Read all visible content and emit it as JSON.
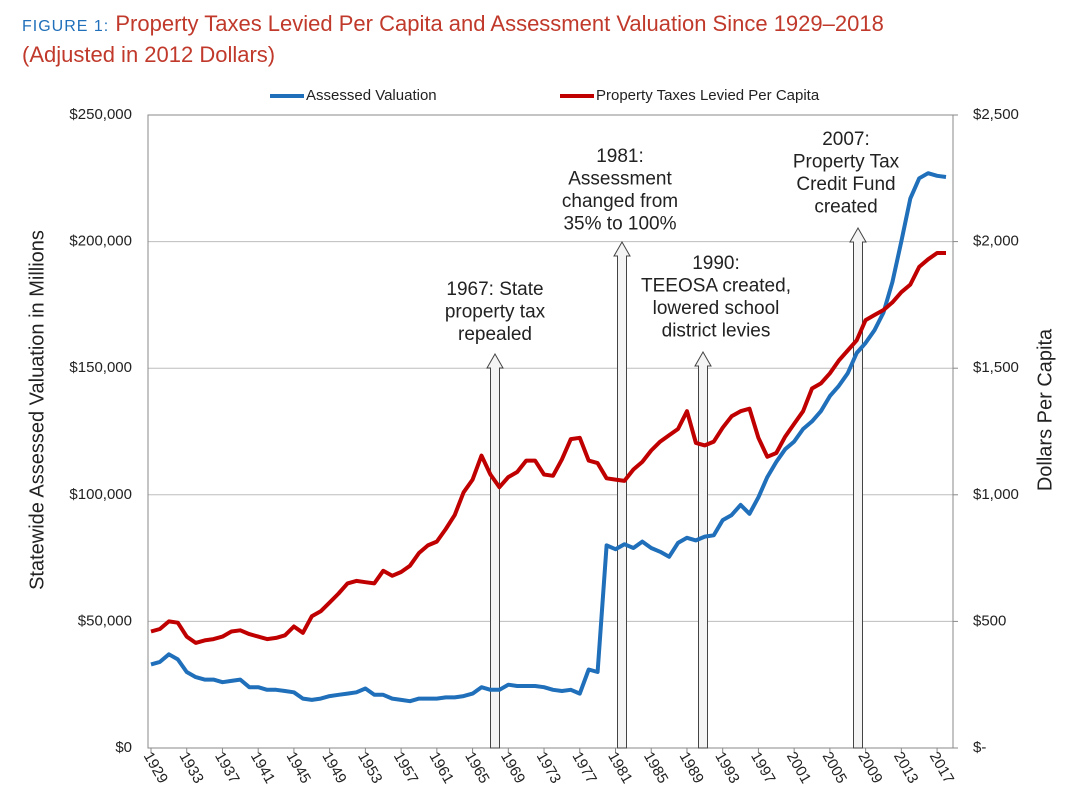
{
  "chart_data": {
    "type": "line",
    "title_prefix": "FIGURE 1:",
    "title": "Property Taxes Levied Per Capita and Assessment Valuation Since 1929–2018 (Adjusted in 2012 Dollars)",
    "ylabel": "Statewide Assessed Valuation in Millions",
    "y2label": "Dollars Per Capita",
    "x": [
      1929,
      1930,
      1931,
      1932,
      1933,
      1934,
      1935,
      1936,
      1937,
      1938,
      1939,
      1940,
      1941,
      1942,
      1943,
      1944,
      1945,
      1946,
      1947,
      1948,
      1949,
      1950,
      1951,
      1952,
      1953,
      1954,
      1955,
      1956,
      1957,
      1958,
      1959,
      1960,
      1961,
      1962,
      1963,
      1964,
      1965,
      1966,
      1967,
      1968,
      1969,
      1970,
      1971,
      1972,
      1973,
      1974,
      1975,
      1976,
      1977,
      1978,
      1979,
      1980,
      1981,
      1982,
      1983,
      1984,
      1985,
      1986,
      1987,
      1988,
      1989,
      1990,
      1991,
      1992,
      1993,
      1994,
      1995,
      1996,
      1997,
      1998,
      1999,
      2000,
      2001,
      2002,
      2003,
      2004,
      2005,
      2006,
      2007,
      2008,
      2009,
      2010,
      2011,
      2012,
      2013,
      2014,
      2015,
      2016,
      2017,
      2018
    ],
    "xlim": [
      1929,
      2018
    ],
    "xticks": [
      1929,
      1933,
      1937,
      1941,
      1945,
      1949,
      1953,
      1957,
      1961,
      1965,
      1969,
      1973,
      1977,
      1981,
      1985,
      1989,
      1993,
      1997,
      2001,
      2005,
      2009,
      2013,
      2017
    ],
    "ylim": [
      0,
      250000
    ],
    "yticks": [
      {
        "value": 0,
        "label": "$0"
      },
      {
        "value": 50000,
        "label": "$50,000"
      },
      {
        "value": 100000,
        "label": "$100,000"
      },
      {
        "value": 150000,
        "label": "$150,000"
      },
      {
        "value": 200000,
        "label": "$200,000"
      },
      {
        "value": 250000,
        "label": "$250,000"
      }
    ],
    "y2lim": [
      0,
      2500
    ],
    "y2ticks": [
      {
        "value": 0,
        "label": "$-"
      },
      {
        "value": 500,
        "label": "$500"
      },
      {
        "value": 1000,
        "label": "$1,000"
      },
      {
        "value": 1500,
        "label": "$1,500"
      },
      {
        "value": 2000,
        "label": "$2,000"
      },
      {
        "value": 2500,
        "label": "$2,500"
      }
    ],
    "grid": true,
    "legend": "top",
    "series": [
      {
        "name": "Assessed Valuation",
        "color": "#1f6fba",
        "axis": "y",
        "values": [
          33000,
          34000,
          37000,
          35000,
          30000,
          28000,
          27000,
          27000,
          26000,
          26500,
          27000,
          24000,
          24000,
          23000,
          23000,
          22500,
          22000,
          19500,
          19000,
          19500,
          20500,
          21000,
          21500,
          22000,
          23500,
          21000,
          21000,
          19500,
          19000,
          18500,
          19500,
          19500,
          19500,
          20000,
          20000,
          20500,
          21500,
          24000,
          23000,
          23000,
          25000,
          24500,
          24500,
          24500,
          24000,
          23000,
          22500,
          23000,
          21500,
          31000,
          30000,
          80000,
          78500,
          80500,
          79000,
          81500,
          79000,
          77500,
          75500,
          81000,
          83000,
          82000,
          83500,
          84000,
          90000,
          92000,
          96000,
          92500,
          99000,
          107000,
          113000,
          118000,
          121000,
          126000,
          129000,
          133000,
          139000,
          143000,
          148000,
          156000,
          160000,
          165000,
          172000,
          184000,
          200000,
          217000,
          225000,
          227000,
          226000,
          225500
        ]
      },
      {
        "name": "Property Taxes Levied Per Capita",
        "color": "#c00000",
        "axis": "y2",
        "values": [
          460,
          470,
          500,
          495,
          440,
          415,
          425,
          430,
          440,
          460,
          465,
          450,
          440,
          430,
          435,
          445,
          480,
          455,
          520,
          540,
          575,
          610,
          650,
          660,
          655,
          650,
          700,
          680,
          695,
          720,
          770,
          800,
          815,
          865,
          920,
          1010,
          1060,
          1155,
          1080,
          1030,
          1070,
          1090,
          1135,
          1135,
          1080,
          1075,
          1140,
          1220,
          1225,
          1135,
          1125,
          1065,
          1060,
          1055,
          1100,
          1130,
          1175,
          1210,
          1235,
          1260,
          1330,
          1205,
          1195,
          1210,
          1265,
          1310,
          1330,
          1340,
          1225,
          1150,
          1165,
          1230,
          1280,
          1330,
          1420,
          1440,
          1480,
          1530,
          1570,
          1610,
          1690,
          1710,
          1730,
          1760,
          1800,
          1830,
          1900,
          1930,
          1955,
          1955
        ]
      }
    ],
    "annotations": [
      {
        "lines": [
          "1967: State",
          "property tax",
          "repealed"
        ]
      },
      {
        "lines": [
          "1981:",
          "Assessment",
          "changed from",
          "35% to 100%"
        ]
      },
      {
        "lines": [
          "1990:",
          "TEEOSA created,",
          "lowered school",
          "district levies"
        ]
      },
      {
        "lines": [
          "2007:",
          "Property Tax",
          "Credit Fund",
          "created"
        ]
      }
    ]
  }
}
